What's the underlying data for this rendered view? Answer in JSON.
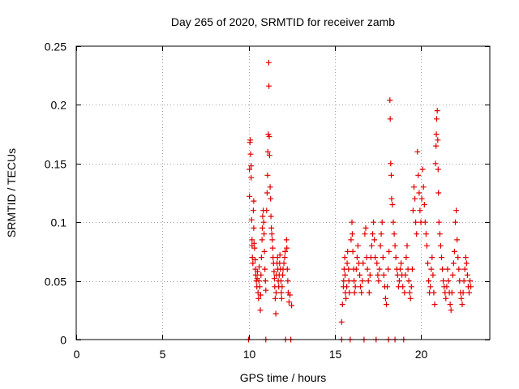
{
  "chart_data": {
    "type": "scatter",
    "title": "Day 265 of 2020, SRMTID for receiver zamb",
    "xlabel": "GPS time / hours",
    "ylabel": "SRMTID / TECUs",
    "xlim": [
      0,
      24
    ],
    "ylim": [
      0,
      0.25
    ],
    "x_ticks": [
      0,
      5,
      10,
      15,
      20
    ],
    "x_tick_labels": [
      "0",
      "5",
      "10",
      "15",
      "20"
    ],
    "y_ticks": [
      0,
      0.05,
      0.1,
      0.15,
      0.2,
      0.25
    ],
    "y_tick_labels": [
      "0",
      "0.05",
      "0.1",
      "0.15",
      "0.2",
      "0.25"
    ],
    "grid": true,
    "marker": "+",
    "series": [
      {
        "name": "SRMTID",
        "color": "#e00000",
        "points": [
          [
            10.0,
            0.0
          ],
          [
            10.05,
            0.122
          ],
          [
            10.05,
            0.145
          ],
          [
            10.08,
            0.168
          ],
          [
            10.1,
            0.17
          ],
          [
            10.12,
            0.158
          ],
          [
            10.15,
            0.148
          ],
          [
            10.15,
            0.138
          ],
          [
            10.18,
            0.102
          ],
          [
            10.2,
            0.085
          ],
          [
            10.2,
            0.08
          ],
          [
            10.22,
            0.07
          ],
          [
            10.25,
            0.065
          ],
          [
            10.28,
            0.11
          ],
          [
            10.3,
            0.118
          ],
          [
            10.3,
            0.095
          ],
          [
            10.32,
            0.082
          ],
          [
            10.35,
            0.078
          ],
          [
            10.38,
            0.068
          ],
          [
            10.4,
            0.06
          ],
          [
            10.42,
            0.055
          ],
          [
            10.45,
            0.05
          ],
          [
            10.48,
            0.045
          ],
          [
            10.5,
            0.052
          ],
          [
            10.52,
            0.058
          ],
          [
            10.55,
            0.04
          ],
          [
            10.58,
            0.035
          ],
          [
            10.6,
            0.05
          ],
          [
            10.62,
            0.062
          ],
          [
            10.65,
            0.045
          ],
          [
            10.68,
            0.025
          ],
          [
            10.7,
            0.038
          ],
          [
            10.72,
            0.055
          ],
          [
            10.75,
            0.07
          ],
          [
            10.78,
            0.085
          ],
          [
            10.8,
            0.095
          ],
          [
            10.82,
            0.105
          ],
          [
            10.85,
            0.11
          ],
          [
            10.88,
            0.1
          ],
          [
            10.9,
            0.09
          ],
          [
            10.92,
            0.075
          ],
          [
            10.95,
            0.06
          ],
          [
            10.98,
            0.05
          ],
          [
            11.0,
            0.042
          ],
          [
            11.0,
            0.0
          ],
          [
            11.05,
            0.11
          ],
          [
            11.08,
            0.125
          ],
          [
            11.1,
            0.14
          ],
          [
            11.12,
            0.16
          ],
          [
            11.15,
            0.175
          ],
          [
            11.17,
            0.236
          ],
          [
            11.18,
            0.216
          ],
          [
            11.2,
            0.173
          ],
          [
            11.22,
            0.157
          ],
          [
            11.25,
            0.13
          ],
          [
            11.28,
            0.12
          ],
          [
            11.3,
            0.105
          ],
          [
            11.32,
            0.095
          ],
          [
            11.35,
            0.09
          ],
          [
            11.38,
            0.085
          ],
          [
            11.4,
            0.078
          ],
          [
            11.42,
            0.07
          ],
          [
            11.45,
            0.065
          ],
          [
            11.48,
            0.058
          ],
          [
            11.5,
            0.052
          ],
          [
            11.52,
            0.045
          ],
          [
            11.55,
            0.035
          ],
          [
            11.58,
            0.022
          ],
          [
            11.6,
            0.04
          ],
          [
            11.62,
            0.055
          ],
          [
            11.65,
            0.065
          ],
          [
            11.68,
            0.07
          ],
          [
            11.7,
            0.06
          ],
          [
            11.72,
            0.05
          ],
          [
            11.75,
            0.045
          ],
          [
            11.78,
            0.055
          ],
          [
            11.8,
            0.065
          ],
          [
            11.82,
            0.072
          ],
          [
            11.85,
            0.06
          ],
          [
            11.88,
            0.05
          ],
          [
            11.9,
            0.04
          ],
          [
            11.92,
            0.035
          ],
          [
            11.95,
            0.045
          ],
          [
            11.98,
            0.055
          ],
          [
            12.0,
            0.06
          ],
          [
            12.05,
            0.065
          ],
          [
            12.1,
            0.07
          ],
          [
            12.12,
            0.075
          ],
          [
            12.15,
            0.0
          ],
          [
            12.2,
            0.085
          ],
          [
            12.22,
            0.078
          ],
          [
            12.25,
            0.06
          ],
          [
            12.28,
            0.05
          ],
          [
            12.3,
            0.04
          ],
          [
            12.35,
            0.032
          ],
          [
            12.4,
            0.038
          ],
          [
            12.45,
            0.0
          ],
          [
            12.5,
            0.029
          ],
          [
            15.4,
            0.0
          ],
          [
            15.4,
            0.015
          ],
          [
            15.45,
            0.03
          ],
          [
            15.5,
            0.045
          ],
          [
            15.52,
            0.05
          ],
          [
            15.55,
            0.06
          ],
          [
            15.58,
            0.07
          ],
          [
            15.6,
            0.055
          ],
          [
            15.62,
            0.04
          ],
          [
            15.65,
            0.035
          ],
          [
            15.7,
            0.045
          ],
          [
            15.72,
            0.065
          ],
          [
            15.75,
            0.075
          ],
          [
            15.8,
            0.06
          ],
          [
            15.82,
            0.05
          ],
          [
            15.85,
            0.04
          ],
          [
            15.9,
            0.0
          ],
          [
            15.95,
            0.085
          ],
          [
            16.0,
            0.1
          ],
          [
            16.02,
            0.09
          ],
          [
            16.05,
            0.075
          ],
          [
            16.1,
            0.06
          ],
          [
            16.12,
            0.05
          ],
          [
            16.15,
            0.04
          ],
          [
            16.2,
            0.045
          ],
          [
            16.25,
            0.06
          ],
          [
            16.3,
            0.07
          ],
          [
            16.35,
            0.08
          ],
          [
            16.4,
            0.065
          ],
          [
            16.45,
            0.055
          ],
          [
            16.5,
            0.045
          ],
          [
            16.55,
            0.04
          ],
          [
            16.6,
            0.05
          ],
          [
            16.65,
            0.065
          ],
          [
            16.7,
            0.0
          ],
          [
            16.75,
            0.09
          ],
          [
            16.8,
            0.095
          ],
          [
            16.85,
            0.07
          ],
          [
            16.9,
            0.06
          ],
          [
            16.95,
            0.05
          ],
          [
            17.0,
            0.04
          ],
          [
            17.05,
            0.055
          ],
          [
            17.1,
            0.07
          ],
          [
            17.15,
            0.08
          ],
          [
            17.2,
            0.09
          ],
          [
            17.25,
            0.1
          ],
          [
            17.3,
            0.085
          ],
          [
            17.35,
            0.07
          ],
          [
            17.4,
            0.0
          ],
          [
            17.45,
            0.065
          ],
          [
            17.5,
            0.055
          ],
          [
            17.55,
            0.05
          ],
          [
            17.6,
            0.06
          ],
          [
            17.65,
            0.08
          ],
          [
            17.7,
            0.09
          ],
          [
            17.75,
            0.1
          ],
          [
            17.8,
            0.07
          ],
          [
            17.85,
            0.055
          ],
          [
            17.9,
            0.045
          ],
          [
            17.95,
            0.035
          ],
          [
            18.0,
            0.03
          ],
          [
            18.05,
            0.045
          ],
          [
            18.1,
            0.06
          ],
          [
            18.12,
            0.0
          ],
          [
            18.15,
            0.075
          ],
          [
            18.2,
            0.204
          ],
          [
            18.22,
            0.188
          ],
          [
            18.25,
            0.15
          ],
          [
            18.28,
            0.14
          ],
          [
            18.3,
            0.12
          ],
          [
            18.35,
            0.115
          ],
          [
            18.4,
            0.1
          ],
          [
            18.45,
            0.09
          ],
          [
            18.5,
            0.08
          ],
          [
            18.5,
            0.0
          ],
          [
            18.55,
            0.07
          ],
          [
            18.6,
            0.06
          ],
          [
            18.65,
            0.055
          ],
          [
            18.7,
            0.045
          ],
          [
            18.75,
            0.05
          ],
          [
            18.8,
            0.06
          ],
          [
            18.85,
            0.065
          ],
          [
            18.9,
            0.055
          ],
          [
            18.95,
            0.045
          ],
          [
            19.0,
            0.0
          ],
          [
            19.05,
            0.04
          ],
          [
            19.1,
            0.055
          ],
          [
            19.15,
            0.07
          ],
          [
            19.2,
            0.08
          ],
          [
            19.25,
            0.06
          ],
          [
            19.3,
            0.05
          ],
          [
            19.35,
            0.04
          ],
          [
            19.4,
            0.035
          ],
          [
            19.45,
            0.045
          ],
          [
            19.5,
            0.06
          ],
          [
            19.55,
            0.11
          ],
          [
            19.6,
            0.13
          ],
          [
            19.65,
            0.12
          ],
          [
            19.7,
            0.1
          ],
          [
            19.75,
            0.09
          ],
          [
            19.8,
            0.16
          ],
          [
            19.85,
            0.14
          ],
          [
            19.9,
            0.125
          ],
          [
            19.95,
            0.11
          ],
          [
            20.0,
            0.1
          ],
          [
            20.05,
            0.12
          ],
          [
            20.1,
            0.145
          ],
          [
            20.15,
            0.13
          ],
          [
            20.2,
            0.115
          ],
          [
            20.25,
            0.1
          ],
          [
            20.3,
            0.09
          ],
          [
            20.35,
            0.08
          ],
          [
            20.4,
            0.065
          ],
          [
            20.45,
            0.05
          ],
          [
            20.5,
            0.04
          ],
          [
            20.55,
            0.045
          ],
          [
            20.6,
            0.06
          ],
          [
            20.65,
            0.07
          ],
          [
            20.7,
            0.055
          ],
          [
            20.75,
            0.04
          ],
          [
            20.8,
            0.03
          ],
          [
            20.85,
            0.15
          ],
          [
            20.88,
            0.165
          ],
          [
            20.9,
            0.175
          ],
          [
            20.92,
            0.188
          ],
          [
            20.95,
            0.195
          ],
          [
            20.98,
            0.17
          ],
          [
            21.0,
            0.145
          ],
          [
            21.02,
            0.125
          ],
          [
            21.05,
            0.1
          ],
          [
            21.1,
            0.09
          ],
          [
            21.15,
            0.08
          ],
          [
            21.2,
            0.07
          ],
          [
            21.25,
            0.06
          ],
          [
            21.3,
            0.05
          ],
          [
            21.35,
            0.045
          ],
          [
            21.4,
            0.04
          ],
          [
            21.45,
            0.035
          ],
          [
            21.5,
            0.045
          ],
          [
            21.55,
            0.06
          ],
          [
            21.6,
            0.05
          ],
          [
            21.65,
            0.04
          ],
          [
            21.7,
            0.03
          ],
          [
            21.75,
            0.025
          ],
          [
            21.8,
            0.04
          ],
          [
            21.85,
            0.055
          ],
          [
            21.9,
            0.065
          ],
          [
            21.95,
            0.075
          ],
          [
            22.0,
            0.1
          ],
          [
            22.05,
            0.11
          ],
          [
            22.1,
            0.085
          ],
          [
            22.15,
            0.07
          ],
          [
            22.2,
            0.06
          ],
          [
            22.25,
            0.05
          ],
          [
            22.3,
            0.04
          ],
          [
            22.35,
            0.035
          ],
          [
            22.4,
            0.03
          ],
          [
            22.45,
            0.04
          ],
          [
            22.5,
            0.05
          ],
          [
            22.55,
            0.06
          ],
          [
            22.6,
            0.07
          ],
          [
            22.65,
            0.065
          ],
          [
            22.7,
            0.055
          ],
          [
            22.75,
            0.045
          ],
          [
            22.8,
            0.04
          ],
          [
            22.85,
            0.05
          ],
          [
            22.9,
            0.045
          ]
        ]
      }
    ]
  }
}
